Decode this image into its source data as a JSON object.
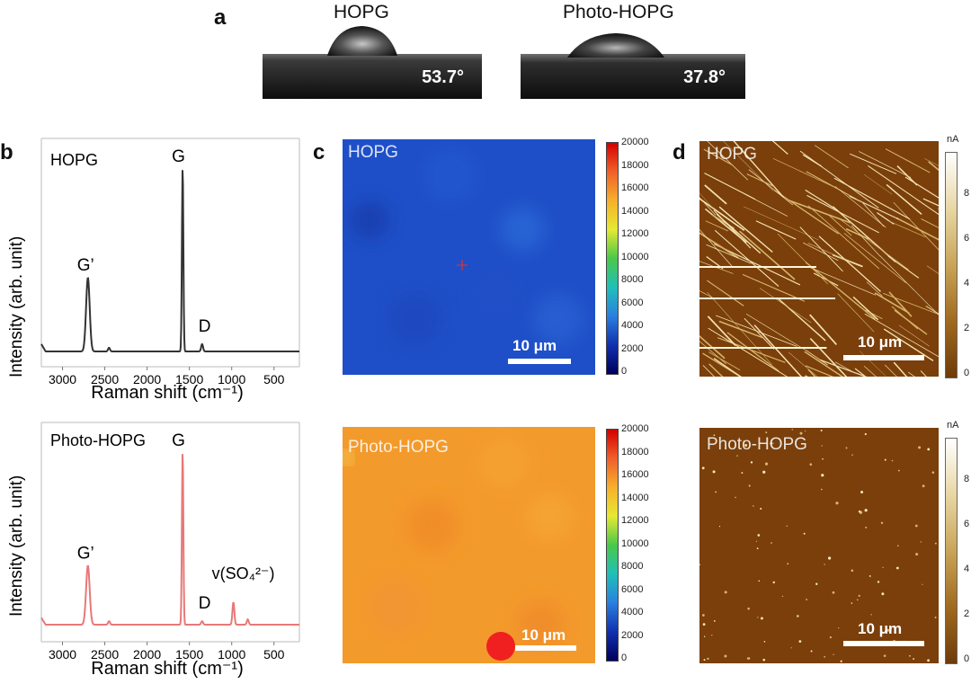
{
  "panels": {
    "a": "a",
    "b": "b",
    "c": "c",
    "d": "d"
  },
  "contact_angle": {
    "hopg": {
      "title": "HOPG",
      "angle": "53.7°"
    },
    "photo": {
      "title": "Photo-HOPG",
      "angle": "37.8°"
    }
  },
  "raman": {
    "top": {
      "sample": "HOPG",
      "ylabel": "Intensity (arb. unit)",
      "xlabel": "Raman shift (cm⁻¹)",
      "peaks": {
        "G": "G",
        "Gp": "G’",
        "D": "D"
      }
    },
    "bottom": {
      "sample": "Photo-HOPG",
      "ylabel": "Intensity (arb. unit)",
      "xlabel": "Raman shift (cm⁻¹)",
      "peaks": {
        "G": "G",
        "Gp": "G’",
        "D": "D",
        "SO4": "v(SO₄²⁻)"
      }
    },
    "xticks": [
      "3000",
      "2500",
      "2000",
      "1500",
      "1000",
      "500"
    ]
  },
  "raman_maps": {
    "top": {
      "label": "HOPG",
      "scale": "10 μm"
    },
    "bottom": {
      "label": "Photo-HOPG",
      "scale": "10 μm"
    },
    "colorbar_ticks": [
      "20000",
      "18000",
      "16000",
      "14000",
      "12000",
      "10000",
      "8000",
      "6000",
      "4000",
      "2000",
      "0"
    ]
  },
  "current_maps": {
    "top": {
      "label": "HOPG",
      "scale": "10 μm",
      "unit": "nA"
    },
    "bottom": {
      "label": "Photo-HOPG",
      "scale": "10 μm",
      "unit": "nA"
    },
    "colorbar_ticks": [
      "8",
      "6",
      "4",
      "2",
      "0"
    ]
  },
  "chart_data": [
    {
      "type": "line",
      "title": "HOPG",
      "xlabel": "Raman shift (cm⁻¹)",
      "ylabel": "Intensity (arb. unit)",
      "xlim": [
        3250,
        200
      ],
      "series": [
        {
          "name": "HOPG",
          "color": "#333333",
          "peaks": [
            {
              "label": "G",
              "x": 1580,
              "height": 1.0
            },
            {
              "label": "G’",
              "x": 2700,
              "height": 0.4
            },
            {
              "label": "D",
              "x": 1350,
              "height": 0.04
            },
            {
              "label": "",
              "x": 2450,
              "height": 0.02
            }
          ]
        }
      ]
    },
    {
      "type": "line",
      "title": "Photo-HOPG",
      "xlabel": "Raman shift (cm⁻¹)",
      "ylabel": "Intensity (arb. unit)",
      "xlim": [
        3250,
        200
      ],
      "series": [
        {
          "name": "Photo-HOPG",
          "color": "#e87878",
          "peaks": [
            {
              "label": "G",
              "x": 1580,
              "height": 1.0
            },
            {
              "label": "G’",
              "x": 2700,
              "height": 0.34
            },
            {
              "label": "D",
              "x": 1350,
              "height": 0.02
            },
            {
              "label": "v(SO₄²⁻)",
              "x": 980,
              "height": 0.13
            },
            {
              "label": "",
              "x": 2450,
              "height": 0.02
            },
            {
              "label": "",
              "x": 810,
              "height": 0.03
            }
          ]
        }
      ]
    }
  ]
}
